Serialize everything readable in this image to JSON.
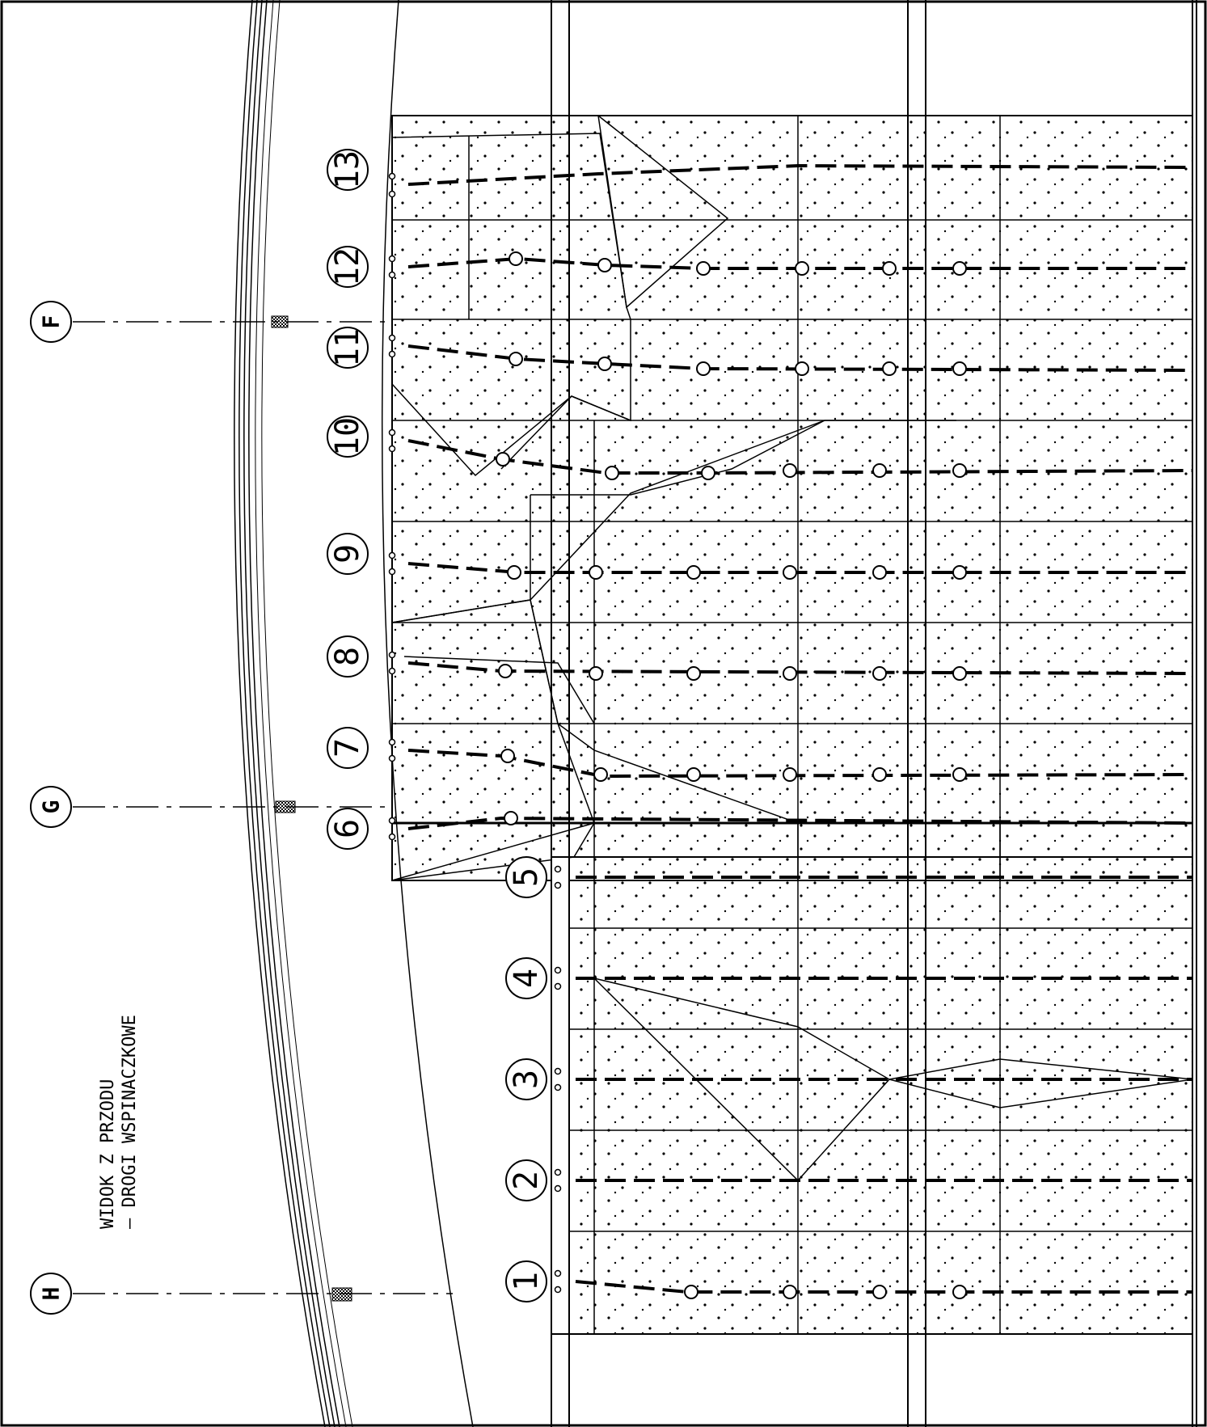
{
  "title": {
    "line1": "WIDOK Z PRZODU",
    "line2": "– DROGI WSPINACZKOWE"
  },
  "axes": [
    "H",
    "G",
    "F"
  ],
  "routes": [
    "1",
    "2",
    "3",
    "4",
    "5",
    "6",
    "7",
    "8",
    "9",
    "10",
    "11",
    "12",
    "13"
  ],
  "colors": {
    "line": "#000000",
    "background": "#ffffff"
  }
}
